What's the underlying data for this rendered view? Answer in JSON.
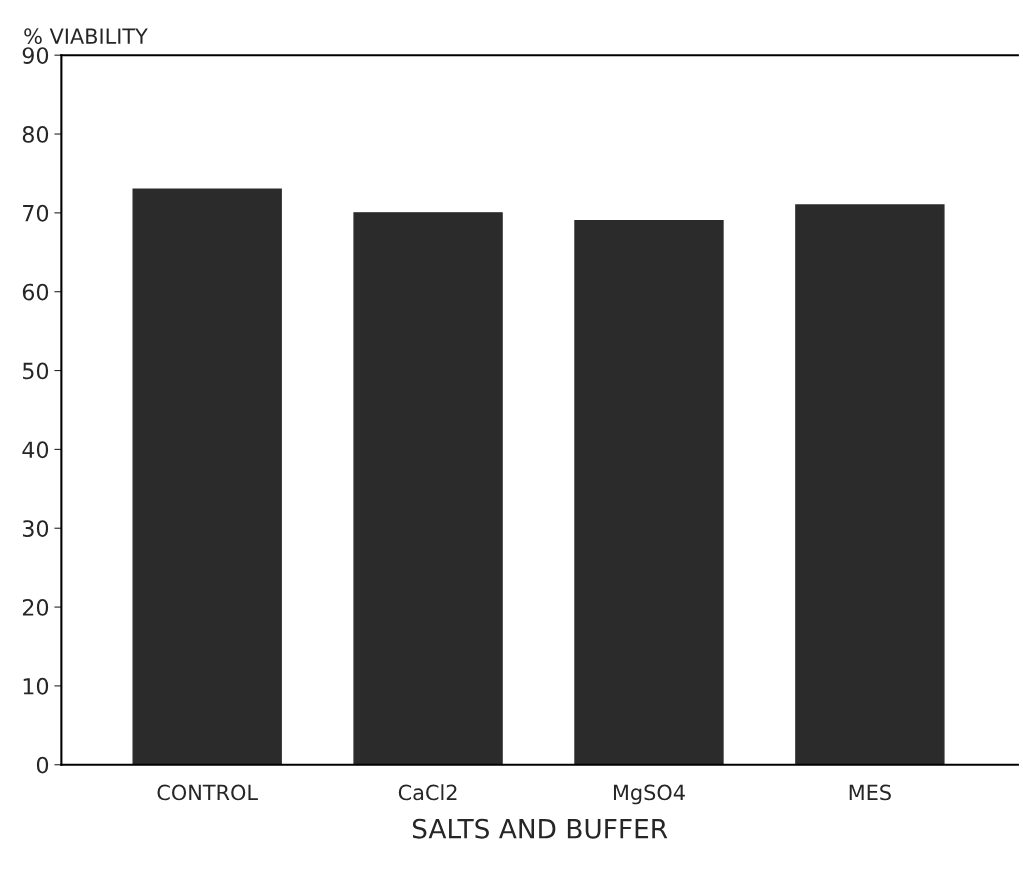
{
  "chart_data": {
    "type": "bar",
    "xlabel": "SALTS AND BUFFER",
    "ylabel": "% VIABILITY",
    "categories": [
      "CONTROL",
      "CaCl2",
      "MgSO4",
      "MES"
    ],
    "values": [
      73,
      70,
      69,
      71
    ],
    "color": "#2b2b2b",
    "ylim": [
      0,
      90
    ],
    "yticks": [
      0,
      10,
      20,
      30,
      40,
      50,
      60,
      70,
      80,
      90
    ],
    "grid": false,
    "legend": false
  }
}
